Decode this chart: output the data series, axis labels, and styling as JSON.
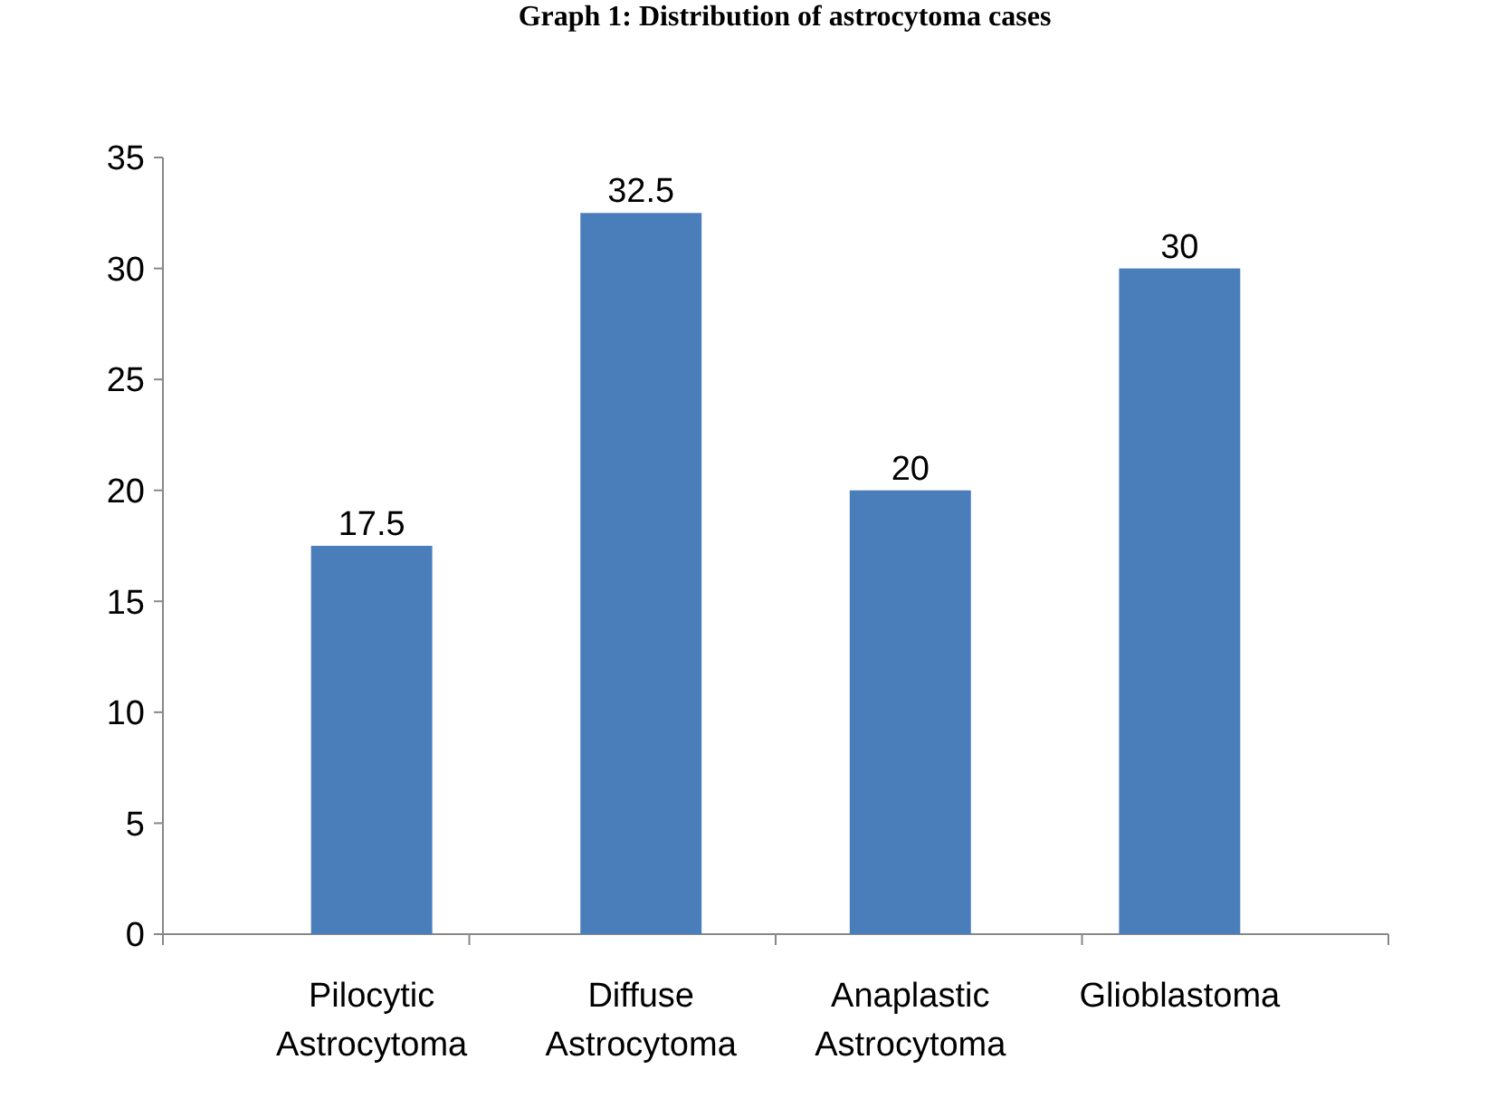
{
  "chart_data": {
    "type": "bar",
    "title": "Graph 1: Distribution of astrocytoma cases",
    "categories": [
      "Pilocytic Astrocytoma",
      "Diffuse Astrocytoma",
      "Anaplastic Astrocytoma",
      "Glioblastoma"
    ],
    "values": [
      17.5,
      32.5,
      20,
      30
    ],
    "color": "#4a7ebb",
    "ylim": [
      0,
      35
    ],
    "yticks": [
      0,
      5,
      10,
      15,
      20,
      25,
      30,
      35
    ],
    "grid": false,
    "data_labels": true
  }
}
